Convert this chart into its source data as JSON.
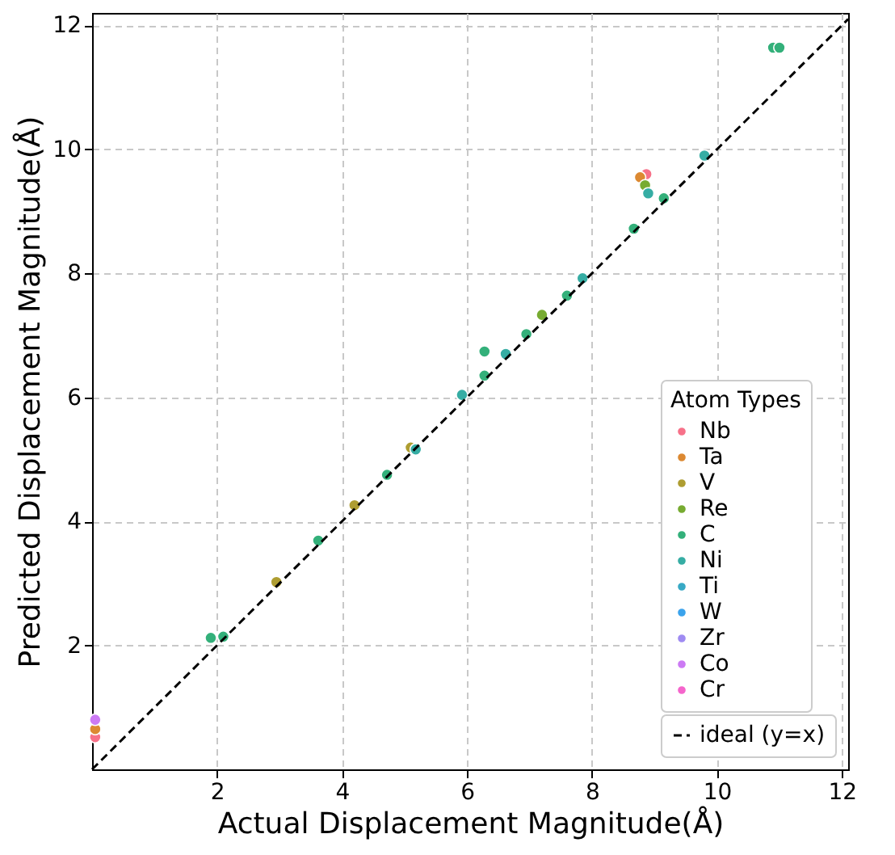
{
  "chart_data": {
    "type": "scatter",
    "xlabel": "Actual Displacement Magnitude(Å)",
    "ylabel": "Predicted Displacement Magnitude(Å)",
    "legend_title": "Atom Types",
    "xlim": [
      0,
      12.1
    ],
    "ylim": [
      0,
      12.2
    ],
    "xticks": [
      2,
      4,
      6,
      8,
      10,
      12
    ],
    "yticks": [
      2,
      4,
      6,
      8,
      10,
      12
    ],
    "grid": true,
    "legend": "bottom right",
    "marker": "circle",
    "series": [
      {
        "name": "Nb",
        "color": "#f77189",
        "x": [
          8.87,
          0.05
        ],
        "values": [
          9.6,
          0.52
        ]
      },
      {
        "name": "Ta",
        "color": "#dc8932",
        "x": [
          8.77,
          0.05
        ],
        "values": [
          9.55,
          0.65
        ]
      },
      {
        "name": "V",
        "color": "#ae9d31",
        "x": [
          4.2,
          2.95,
          5.1
        ],
        "values": [
          4.26,
          3.02,
          5.19
        ]
      },
      {
        "name": "Re",
        "color": "#77ab31",
        "x": [
          8.85,
          7.2
        ],
        "values": [
          9.42,
          7.33
        ]
      },
      {
        "name": "C",
        "color": "#33b07a",
        "x": [
          10.9,
          11.0,
          9.15,
          8.67,
          7.6,
          6.95,
          6.28,
          6.28,
          4.72,
          3.62,
          1.9,
          2.1
        ],
        "values": [
          11.64,
          11.64,
          9.21,
          8.72,
          7.64,
          7.02,
          6.74,
          6.35,
          4.75,
          3.69,
          2.12,
          2.14
        ]
      },
      {
        "name": "Ni",
        "color": "#36ada4",
        "x": [
          9.8,
          8.9,
          7.85,
          6.62,
          5.92,
          5.18
        ],
        "values": [
          9.9,
          9.29,
          7.92,
          6.7,
          6.04,
          5.16
        ]
      },
      {
        "name": "Ti",
        "color": "#38a9c5"
      },
      {
        "name": "W",
        "color": "#3ba3ec"
      },
      {
        "name": "Zr",
        "color": "#9f8bf2"
      },
      {
        "name": "Co",
        "color": "#cc7af4",
        "x": [
          0.05
        ],
        "values": [
          0.8
        ]
      },
      {
        "name": "Cr",
        "color": "#f565cc"
      },
      {
        "name": "ideal (y=x)",
        "type": "line",
        "color": "#000000",
        "line_style": "dashed",
        "marker": "none",
        "x": [
          0,
          12.1
        ],
        "values": [
          0,
          12.1
        ]
      }
    ]
  }
}
